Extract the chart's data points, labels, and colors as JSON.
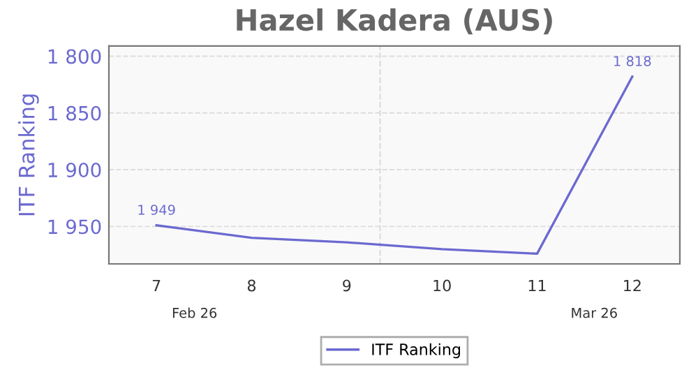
{
  "chart_data": {
    "type": "line",
    "title": "Hazel Kadera (AUS)",
    "ylabel": "ITF Ranking",
    "x": [
      7,
      8,
      9,
      10,
      11,
      12
    ],
    "series": [
      {
        "name": "ITF Ranking",
        "color": "#6b69d0",
        "values": [
          1949,
          1960,
          1964,
          1970,
          1974,
          1818
        ],
        "value_labels": [
          "1 949",
          null,
          null,
          null,
          null,
          "1 818"
        ]
      }
    ],
    "xlim": [
      6.5,
      12.5
    ],
    "xticks": [
      7,
      8,
      9,
      10,
      11,
      12
    ],
    "ylim": [
      1983,
      1791
    ],
    "yticks": [
      {
        "value": 1800,
        "label": "1 800"
      },
      {
        "value": 1850,
        "label": "1 850"
      },
      {
        "value": 1900,
        "label": "1 900"
      },
      {
        "value": 1950,
        "label": "1 950"
      }
    ],
    "ref_lines": [
      {
        "axis": "x",
        "value": 9.35,
        "label": null,
        "color": "#dddddd",
        "line_style": "dashed"
      }
    ],
    "annotations": [
      "Feb 26",
      "Mar 26"
    ],
    "grid": "y",
    "legend": "bottom",
    "marker": "none",
    "line_style": "solid"
  }
}
